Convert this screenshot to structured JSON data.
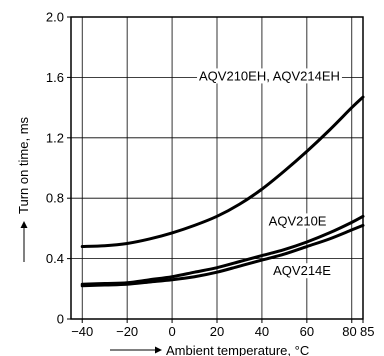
{
  "chart_data": {
    "type": "line",
    "xlabel": "Ambient temperature, °C",
    "ylabel": "Turn on time, ms",
    "xlim": [
      -45,
      85
    ],
    "ylim": [
      0,
      2.0
    ],
    "x_ticks": [
      "−40",
      "−20",
      "0",
      "20",
      "40",
      "60",
      "80",
      "85"
    ],
    "x_tick_values": [
      -40,
      -20,
      0,
      20,
      40,
      60,
      80,
      85
    ],
    "y_ticks": [
      "0",
      "0.4",
      "0.8",
      "1.2",
      "1.6",
      "2.0"
    ],
    "y_tick_values": [
      0,
      0.4,
      0.8,
      1.2,
      1.6,
      2.0
    ],
    "grid": true,
    "series": [
      {
        "name": "AQV210EH, AQV214EH",
        "x": [
          -40,
          -30,
          -20,
          -10,
          0,
          10,
          20,
          30,
          40,
          50,
          60,
          70,
          80,
          85
        ],
        "y": [
          0.48,
          0.485,
          0.5,
          0.53,
          0.57,
          0.62,
          0.68,
          0.76,
          0.86,
          0.98,
          1.11,
          1.25,
          1.4,
          1.47
        ]
      },
      {
        "name": "AQV210E",
        "x": [
          -40,
          -30,
          -20,
          -10,
          0,
          10,
          20,
          30,
          40,
          50,
          60,
          70,
          80,
          85
        ],
        "y": [
          0.23,
          0.235,
          0.24,
          0.26,
          0.28,
          0.31,
          0.34,
          0.38,
          0.42,
          0.46,
          0.51,
          0.57,
          0.64,
          0.68
        ]
      },
      {
        "name": "AQV214E",
        "x": [
          -40,
          -30,
          -20,
          -10,
          0,
          10,
          20,
          30,
          40,
          50,
          60,
          70,
          80,
          85
        ],
        "y": [
          0.22,
          0.225,
          0.23,
          0.245,
          0.26,
          0.28,
          0.31,
          0.35,
          0.39,
          0.43,
          0.48,
          0.53,
          0.59,
          0.62
        ]
      }
    ]
  }
}
